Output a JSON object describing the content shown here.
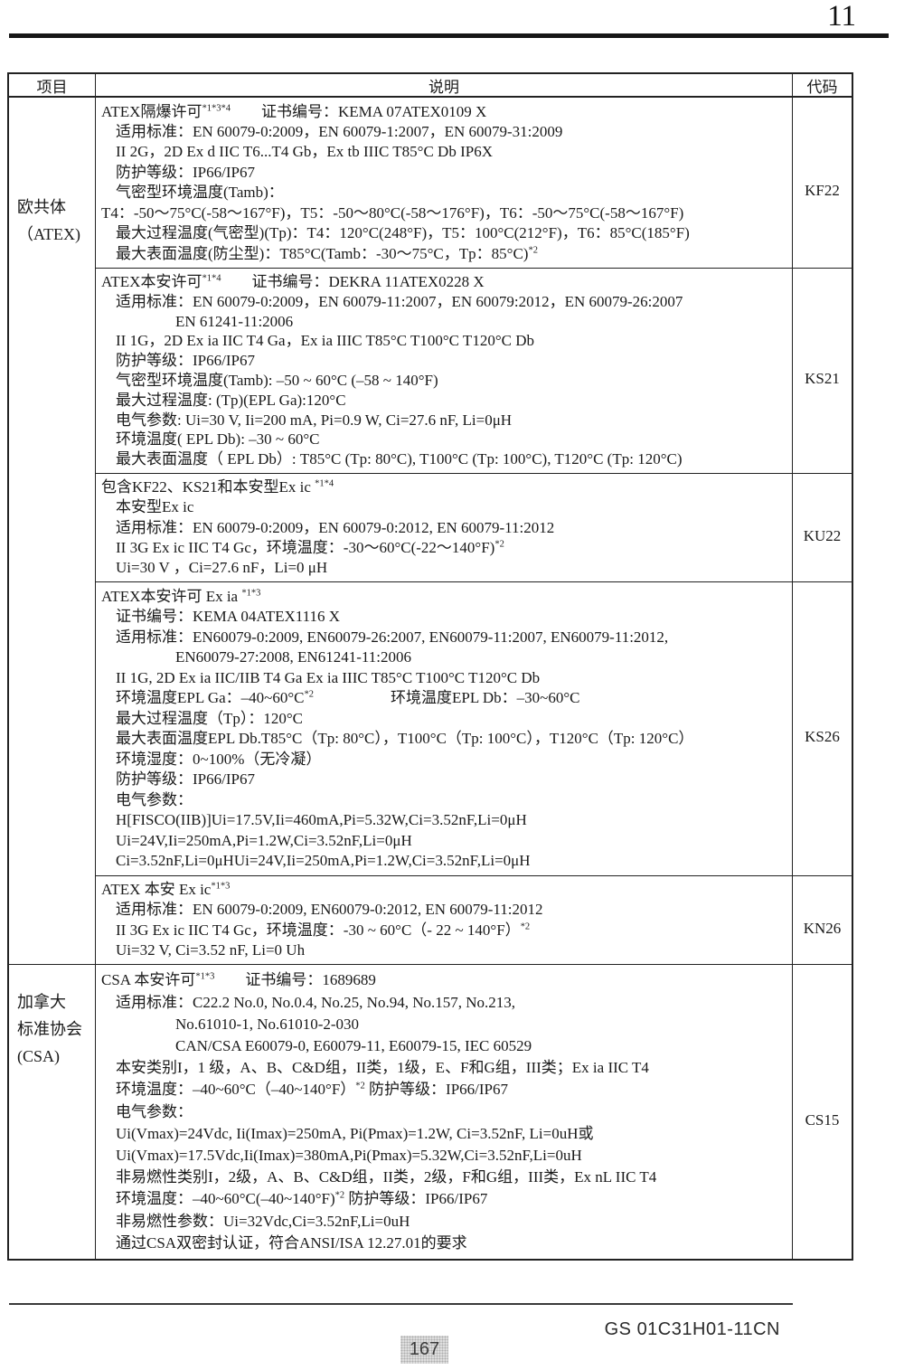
{
  "page": {
    "number": "11",
    "footer_doc": "GS 01C31H01-11CN",
    "footer_page": "167"
  },
  "table": {
    "headers": {
      "item": "项目",
      "description": "说明",
      "code": "代码"
    },
    "groups": [
      {
        "item_lines": [
          "欧共体",
          "（ATEX)"
        ],
        "rows": [
          {
            "code": "KF22",
            "lines": [
              {
                "indent": 0,
                "text": "ATEX隔爆许可⟦*1*3*4⟧　　证书编号：KEMA 07ATEX0109 X"
              },
              {
                "indent": 1,
                "text": "适用标准：EN 60079-0:2009，EN 60079-1:2007，EN 60079-31:2009"
              },
              {
                "indent": 1,
                "text": "II 2G，2D Ex d IIC T6...T4 Gb，Ex tb IIIC T85°C Db IP6X"
              },
              {
                "indent": 1,
                "text": "防护等级：IP66/IP67"
              },
              {
                "indent": 1,
                "text": "气密型环境温度(Tamb)："
              },
              {
                "indent": 0,
                "text": "T4：-50～75°C(-58～167°F)，T5：-50～80°C(-58～176°F)，T6：-50～75°C(-58～167°F)"
              },
              {
                "indent": 1,
                "text": "最大过程温度(气密型)(Tp)：T4：120°C(248°F)，T5：100°C(212°F)，T6：85°C(185°F)"
              },
              {
                "indent": 1,
                "text": "最大表面温度(防尘型)：T85°C(Tamb：-30～75°C，Tp：85°C)⟦*2⟧"
              }
            ]
          },
          {
            "code": "KS21",
            "lines": [
              {
                "indent": 0,
                "text": "ATEX本安许可⟦*1*4⟧　　证书编号：DEKRA 11ATEX0228 X"
              },
              {
                "indent": 1,
                "text": "适用标准：EN 60079-0:2009，EN 60079-11:2007，EN 60079:2012，EN 60079-26:2007"
              },
              {
                "indent": 2,
                "text": "EN 61241-11:2006"
              },
              {
                "indent": 1,
                "text": "II 1G，2D Ex ia IIC T4 Ga，Ex ia IIIC T85°C T100°C T120°C Db"
              },
              {
                "indent": 1,
                "text": "防护等级：IP66/IP67"
              },
              {
                "indent": 1,
                "text": "气密型环境温度(Tamb): –50 ~ 60°C (–58 ~ 140°F)"
              },
              {
                "indent": 1,
                "text": "最大过程温度: (Tp)(EPL Ga):120°C"
              },
              {
                "indent": 1,
                "text": "电气参数: Ui=30 V, Ii=200 mA, Pi=0.9 W, Ci=27.6 nF, Li=0μH"
              },
              {
                "indent": 1,
                "text": "环境温度( EPL Db): –30 ~ 60°C"
              },
              {
                "indent": 1,
                "text": "最大表面温度（ EPL Db）: T85°C (Tp: 80°C), T100°C (Tp: 100°C), T120°C (Tp: 120°C)"
              }
            ]
          },
          {
            "code": "KU22",
            "lines": [
              {
                "indent": 0,
                "text": "包含KF22、KS21和本安型Ex ic ⟦*1*4⟧"
              },
              {
                "indent": 1,
                "text": "本安型Ex ic"
              },
              {
                "indent": 1,
                "text": "适用标准：EN 60079-0:2009，EN 60079-0:2012, EN 60079-11:2012"
              },
              {
                "indent": 1,
                "text": "II 3G Ex ic IIC T4 Gc，环境温度：-30～60°C(-22～140°F)⟦*2⟧"
              },
              {
                "indent": 1,
                "text": "Ui=30 V ，Ci=27.6 nF，Li=0 μH"
              }
            ]
          },
          {
            "code": "KS26",
            "lines": [
              {
                "indent": 0,
                "text": "ATEX本安许可 Ex ia ⟦*1*3⟧"
              },
              {
                "indent": 1,
                "text": "证书编号：KEMA 04ATEX1116 X"
              },
              {
                "indent": 1,
                "text": "适用标准：EN60079-0:2009, EN60079-26:2007, EN60079-11:2007, EN60079-11:2012,"
              },
              {
                "indent": 2,
                "text": "EN60079-27:2008, EN61241-11:2006"
              },
              {
                "indent": 1,
                "text": "II 1G, 2D Ex ia IIC/IIB T4 Ga Ex ia IIIC T85°C T100°C T120°C Db"
              },
              {
                "indent": 1,
                "text": "环境温度EPL Ga：–40~60°C⟦*2⟧　　　　　环境温度EPL Db：–30~60°C"
              },
              {
                "indent": 1,
                "text": "最大过程温度（Tp）：120°C"
              },
              {
                "indent": 1,
                "text": "最大表面温度EPL Db.T85°C（Tp: 80°C），T100°C（Tp: 100°C），T120°C（Tp: 120°C）"
              },
              {
                "indent": 1,
                "text": "环境湿度：0~100%（无冷凝）"
              },
              {
                "indent": 1,
                "text": "防护等级：IP66/IP67"
              },
              {
                "indent": 1,
                "text": "电气参数："
              },
              {
                "indent": 1,
                "text": "H[FISCO(IIB)]Ui=17.5V,Ii=460mA,Pi=5.32W,Ci=3.52nF,Li=0μH"
              },
              {
                "indent": 1,
                "text": "Ui=24V,Ii=250mA,Pi=1.2W,Ci=3.52nF,Li=0μH"
              },
              {
                "indent": 1,
                "text": "Ci=3.52nF,Li=0μHUi=24V,Ii=250mA,Pi=1.2W,Ci=3.52nF,Li=0μH"
              }
            ]
          },
          {
            "code": "KN26",
            "lines": [
              {
                "indent": 0,
                "text": "ATEX 本安 Ex ic⟦*1*3⟧"
              },
              {
                "indent": 1,
                "text": "适用标准：EN 60079-0:2009, EN60079-0:2012, EN 60079-11:2012"
              },
              {
                "indent": 1,
                "text": "II 3G Ex ic IIC T4 Gc，环境温度：-30 ~ 60°C（- 22 ~ 140°F）⟦*2⟧"
              },
              {
                "indent": 1,
                "text": "Ui=32 V, Ci=3.52 nF, Li=0 Uh"
              }
            ]
          }
        ]
      },
      {
        "item_lines": [
          "加拿大",
          "标准协会",
          "(CSA)"
        ],
        "rows": [
          {
            "code": "CS15",
            "lines": [
              {
                "indent": 0,
                "text": "CSA 本安许可⟦*1*3⟧　　证书编号：1689689"
              },
              {
                "indent": 1,
                "text": "适用标准：C22.2 No.0, No.0.4, No.25, No.94, No.157, No.213,"
              },
              {
                "indent": 2,
                "text": "No.61010-1, No.61010-2-030"
              },
              {
                "indent": 2,
                "text": "CAN/CSA E60079-0, E60079-11, E60079-15, IEC 60529"
              },
              {
                "indent": 1,
                "text": "本安类别I，1 级，A、B、C&D组，II类，1级，E、F和G组，III类；Ex ia IIC T4"
              },
              {
                "indent": 1,
                "text": "环境温度：–40~60°C（–40~140°F）⟦*2⟧ 防护等级：IP66/IP67"
              },
              {
                "indent": 1,
                "text": "电气参数："
              },
              {
                "indent": 1,
                "text": "Ui(Vmax)=24Vdc, Ii(Imax)=250mA, Pi(Pmax)=1.2W, Ci=3.52nF, Li=0uH或"
              },
              {
                "indent": 1,
                "text": "Ui(Vmax)=17.5Vdc,Ii(Imax)=380mA,Pi(Pmax)=5.32W,Ci=3.52nF,Li=0uH"
              },
              {
                "indent": 1,
                "text": "非易燃性类别I，2级，A、B、C&D组，II类，2级，F和G组，III类，Ex nL IIC T4"
              },
              {
                "indent": 1,
                "text": "环境温度：–40~60°C(–40~140°F)⟦*2⟧ 防护等级：IP66/IP67"
              },
              {
                "indent": 1,
                "text": "非易燃性参数：Ui=32Vdc,Ci=3.52nF,Li=0uH"
              },
              {
                "indent": 1,
                "text": "通过CSA双密封认证，符合ANSI/ISA 12.27.01的要求"
              }
            ]
          }
        ]
      }
    ]
  }
}
